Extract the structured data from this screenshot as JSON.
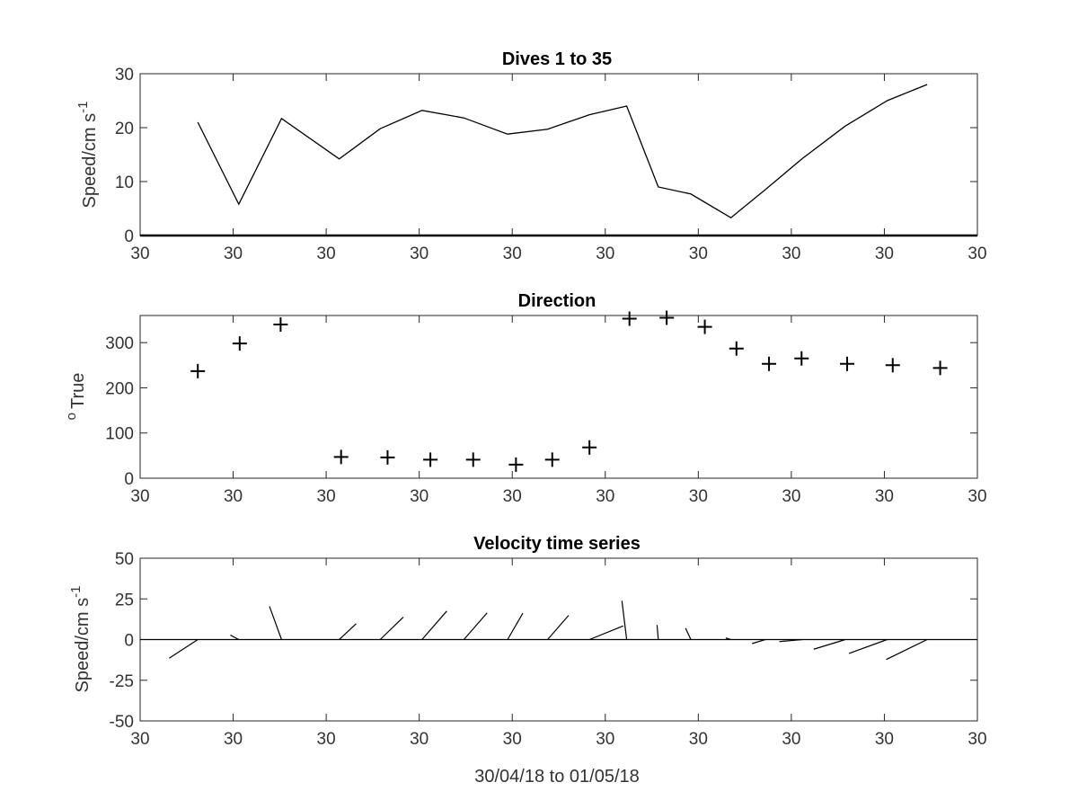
{
  "chart_data": [
    {
      "type": "line",
      "title": "Dives 1 to 35",
      "ylabel": "Speed/cm s",
      "ylabel_sup": "-1",
      "xlabel": "",
      "ylim": [
        0,
        30
      ],
      "yticks": [
        "0",
        "10",
        "20",
        "30"
      ],
      "xticks": [
        "30",
        "30",
        "30",
        "30",
        "30",
        "30",
        "30",
        "30",
        "30",
        "30"
      ],
      "x": [
        0.62,
        1.06,
        1.52,
        2.14,
        2.58,
        3.03,
        3.48,
        3.95,
        4.38,
        4.83,
        5.23,
        5.57,
        5.92,
        6.35,
        6.72,
        7.12,
        7.58,
        8.03,
        8.46
      ],
      "values": [
        21,
        5.8,
        21.7,
        14.2,
        19.8,
        23.2,
        21.8,
        18.8,
        19.7,
        22.4,
        24,
        9,
        7.7,
        3.3,
        8.5,
        14.3,
        20.3,
        25,
        28
      ],
      "grid": false
    },
    {
      "type": "scatter",
      "title": "Direction",
      "ylabel": "True",
      "ylabel_sup": "o",
      "xlabel": "",
      "ylim": [
        0,
        360
      ],
      "yticks": [
        "0",
        "100",
        "200",
        "300"
      ],
      "xticks": [
        "30",
        "30",
        "30",
        "30",
        "30",
        "30",
        "30",
        "30",
        "30",
        "30"
      ],
      "x": [
        0.62,
        1.07,
        1.51,
        2.16,
        2.66,
        3.12,
        3.58,
        4.04,
        4.43,
        4.83,
        5.26,
        5.66,
        6.07,
        6.41,
        6.76,
        7.11,
        7.6,
        8.09,
        8.6
      ],
      "values": [
        237,
        298,
        340,
        47,
        46,
        41,
        41,
        30,
        41,
        68,
        353,
        355,
        335,
        287,
        253,
        265,
        253,
        250,
        244
      ],
      "marker": "+",
      "grid": false
    },
    {
      "type": "quiver",
      "title": "Velocity time series",
      "ylabel": "Speed/cm s",
      "ylabel_sup": "-1",
      "xlabel": "30/04/18 to 01/05/18",
      "ylim": [
        -50,
        50
      ],
      "yticks": [
        "-50",
        "-25",
        "0",
        "25",
        "50"
      ],
      "xticks": [
        "30",
        "30",
        "30",
        "30",
        "30",
        "30",
        "30",
        "30",
        "30",
        "30"
      ],
      "x": [
        0.62,
        1.06,
        1.52,
        2.14,
        2.58,
        3.03,
        3.48,
        3.95,
        4.38,
        4.83,
        5.23,
        5.57,
        5.92,
        6.35,
        6.72,
        7.12,
        7.58,
        8.03,
        8.46
      ],
      "speed": [
        21,
        5.8,
        21.7,
        14.2,
        19.8,
        23.2,
        21.8,
        18.8,
        19.7,
        22.4,
        24,
        9,
        7.7,
        3.3,
        8.5,
        14.3,
        20.3,
        25,
        28
      ],
      "direction_deg_true": [
        237,
        298,
        340,
        47,
        46,
        41,
        41,
        30,
        41,
        68,
        353,
        355,
        335,
        287,
        253,
        265,
        253,
        250,
        244
      ],
      "grid": false
    }
  ],
  "x_axis": {
    "min": 0,
    "max": 9
  }
}
